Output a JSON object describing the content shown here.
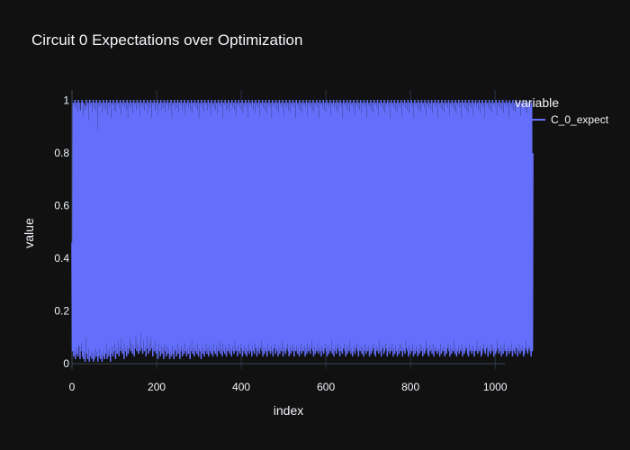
{
  "colors": {
    "background": "#111111",
    "grid": "#283442",
    "zeroline": "#3c4a5a",
    "text": "#f2f5fa",
    "series": "#636efa"
  },
  "chart_data": {
    "type": "line",
    "title": "Circuit 0 Expectations over Optimization",
    "xlabel": "index",
    "ylabel": "value",
    "xlim": [
      0,
      1023
    ],
    "ylim": [
      -0.02,
      1.04
    ],
    "x_ticks": [
      0,
      200,
      400,
      600,
      800,
      1000
    ],
    "y_ticks": [
      0,
      0.2,
      0.4,
      0.6,
      0.8,
      1
    ],
    "x_tick_labels": [
      "0",
      "200",
      "400",
      "600",
      "800",
      "1000"
    ],
    "y_tick_labels": [
      "0",
      "0.2",
      "0.4",
      "0.6",
      "0.8",
      "1"
    ],
    "grid": true,
    "legend": {
      "title": "variable",
      "position": "top-right",
      "entries": [
        "C_0_expect"
      ]
    },
    "series": [
      {
        "name": "C_0_expect",
        "x_start": 0,
        "x_step": 1,
        "values": [
          0.46,
          0.05,
          0.21,
          0.99,
          0.03,
          0.98,
          0.05,
          1.0,
          0.02,
          0.97,
          0.06,
          0.99,
          0.04,
          0.95,
          0.03,
          1.0,
          0.07,
          0.99,
          0.88,
          0.02,
          0.96,
          0.05,
          0.99,
          0.08,
          1.0,
          0.03,
          0.94,
          0.02,
          0.99,
          0.05,
          0.96,
          0.01,
          0.98,
          0.1,
          1.0,
          0.04,
          0.97,
          0.02,
          0.99,
          0.06,
          0.92,
          0.01,
          1.0,
          0.03,
          0.98,
          0.05,
          0.99,
          0.02,
          0.95,
          0.04,
          1.0,
          0.01,
          0.97,
          0.02,
          0.99,
          0.06,
          0.96,
          0.03,
          1.0,
          0.05,
          0.88,
          0.01,
          0.99,
          0.03,
          0.97,
          0.06,
          1.0,
          0.02,
          0.98,
          0.04,
          0.99,
          0.01,
          0.95,
          0.05,
          1.0,
          0.03,
          0.97,
          0.02,
          0.99,
          0.04,
          0.96,
          0.08,
          1.0,
          0.02,
          0.94,
          0.05,
          0.99,
          0.03,
          0.97,
          0.06,
          1.0,
          0.01,
          0.93,
          0.04,
          0.99,
          0.07,
          0.98,
          0.03,
          1.0,
          0.05,
          0.96,
          0.08,
          0.99,
          0.02,
          0.95,
          0.06,
          1.0,
          0.04,
          0.98,
          0.09,
          0.99,
          0.03,
          0.97,
          0.07,
          1.0,
          0.05,
          0.94,
          0.1,
          0.99,
          0.04,
          0.98,
          0.06,
          1.0,
          0.02,
          0.97,
          0.08,
          0.99,
          0.05,
          0.96,
          0.03,
          1.0,
          0.07,
          0.93,
          0.04,
          0.99,
          0.06,
          0.98,
          0.1,
          1.0,
          0.05,
          0.97,
          0.08,
          0.99,
          0.04,
          0.95,
          0.07,
          1.0,
          0.03,
          0.98,
          0.06,
          0.99,
          0.11,
          0.96,
          0.05,
          1.0,
          0.08,
          0.97,
          0.04,
          0.99,
          0.07,
          0.94,
          0.05,
          1.0,
          0.12,
          0.98,
          0.06,
          0.99,
          0.04,
          0.97,
          0.09,
          1.0,
          0.05,
          0.96,
          0.07,
          0.99,
          0.03,
          0.98,
          0.11,
          1.0,
          0.06,
          0.95,
          0.04,
          0.99,
          0.08,
          0.97,
          0.05,
          1.0,
          0.1,
          0.93,
          0.06,
          0.99,
          0.03,
          0.98,
          0.07,
          1.0,
          0.05,
          0.96,
          0.09,
          0.99,
          0.04,
          0.97,
          0.06,
          1.0,
          0.02,
          0.94,
          0.08,
          0.99,
          0.05,
          0.98,
          0.03,
          1.0,
          0.07,
          0.96,
          0.04,
          0.99,
          0.06,
          0.97,
          0.02,
          1.0,
          0.08,
          0.95,
          0.05,
          0.99,
          0.03,
          0.98,
          0.07,
          1.0,
          0.04,
          0.96,
          0.06,
          0.99,
          0.02,
          0.97,
          0.05,
          1.0,
          0.03,
          0.93,
          0.07,
          0.99,
          0.04,
          0.98,
          0.02,
          1.0,
          0.06,
          0.96,
          0.05,
          0.99,
          0.03,
          0.97,
          0.08,
          1.0,
          0.04,
          0.95,
          0.06,
          0.99,
          0.02,
          0.98,
          0.05,
          1.0,
          0.07,
          0.96,
          0.03,
          0.99,
          0.06,
          0.97,
          0.04,
          1.0,
          0.08,
          0.94,
          0.05,
          0.99,
          0.03,
          0.98,
          0.06,
          1.0,
          0.04,
          0.97,
          0.07,
          0.99,
          0.02,
          0.96,
          0.05,
          1.0,
          0.09,
          0.95,
          0.04,
          0.99,
          0.06,
          0.98,
          0.03,
          1.0,
          0.07,
          0.97,
          0.05,
          0.99,
          0.04,
          0.96,
          0.08,
          1.0,
          0.03,
          0.93,
          0.06,
          0.99,
          0.05,
          0.98,
          0.02,
          1.0,
          0.07,
          0.97,
          0.04,
          0.99,
          0.06,
          0.95,
          0.03,
          1.0,
          0.05,
          0.98,
          0.08,
          0.99,
          0.04,
          0.96,
          0.06,
          1.0,
          0.03,
          0.97,
          0.07,
          0.99,
          0.05,
          0.94,
          0.04,
          1.0,
          0.06,
          0.98,
          0.03,
          0.99,
          0.08,
          0.97,
          0.05,
          1.0,
          0.04,
          0.96,
          0.07,
          0.99,
          0.03,
          0.95,
          0.06,
          1.0,
          0.05,
          0.98,
          0.09,
          0.99,
          0.04,
          0.97,
          0.06,
          1.0,
          0.03,
          0.93,
          0.08,
          0.99,
          0.05,
          0.98,
          0.04,
          1.0,
          0.07,
          0.96,
          0.03,
          0.99,
          0.06,
          0.97,
          0.05,
          1.0,
          0.08,
          0.95,
          0.04,
          0.99,
          0.06,
          0.98,
          0.03,
          1.0,
          0.07,
          0.97,
          0.05,
          0.99,
          0.04,
          0.96,
          0.09,
          1.0,
          0.05,
          0.94,
          0.06,
          0.99,
          0.03,
          0.98,
          0.07,
          1.0,
          0.05,
          0.97,
          0.04,
          0.99,
          0.08,
          0.96,
          0.06,
          1.0,
          0.03,
          0.95,
          0.05,
          0.99,
          0.07,
          0.98,
          0.04,
          1.0,
          0.06,
          0.97,
          0.03,
          0.99,
          0.05,
          0.93,
          0.08,
          1.0,
          0.04,
          0.98,
          0.06,
          0.99,
          0.05,
          0.97,
          0.03,
          1.0,
          0.07,
          0.96,
          0.05,
          0.99,
          0.04,
          0.95,
          0.08,
          1.0,
          0.06,
          0.98,
          0.03,
          0.99,
          0.05,
          0.97,
          0.07,
          1.0,
          0.04,
          0.94,
          0.06,
          0.99,
          0.09,
          0.98,
          0.05,
          1.0,
          0.03,
          0.97,
          0.07,
          0.99,
          0.04,
          0.96,
          0.06,
          1.0,
          0.05,
          0.95,
          0.03,
          0.99,
          0.08,
          0.98,
          0.05,
          1.0,
          0.06,
          0.97,
          0.04,
          0.99,
          0.07,
          0.93,
          0.05,
          1.0,
          0.03,
          0.98,
          0.06,
          0.99,
          0.08,
          0.97,
          0.04,
          1.0,
          0.06,
          0.96,
          0.05,
          0.99,
          0.03,
          0.95,
          0.07,
          1.0,
          0.04,
          0.98,
          0.06,
          0.99,
          0.05,
          0.97,
          0.09,
          1.0,
          0.03,
          0.94,
          0.07,
          0.99,
          0.05,
          0.98,
          0.04,
          1.0,
          0.06,
          0.97,
          0.08,
          0.99,
          0.05,
          0.96,
          0.03,
          1.0,
          0.07,
          0.95,
          0.04,
          0.99,
          0.06,
          0.98,
          0.05,
          1.0,
          0.08,
          0.97,
          0.03,
          0.99,
          0.06,
          0.93,
          0.05,
          1.0,
          0.07,
          0.98,
          0.04,
          0.99,
          0.06,
          0.97,
          0.03,
          1.0,
          0.05,
          0.96,
          0.08,
          0.99,
          0.04,
          0.95,
          0.06,
          1.0,
          0.05,
          0.98,
          0.07,
          0.99,
          0.03,
          0.97,
          0.06,
          1.0,
          0.04,
          0.94,
          0.08,
          0.99,
          0.05,
          0.98,
          0.07,
          1.0,
          0.04,
          0.97,
          0.06,
          0.99,
          0.09,
          0.96,
          0.05,
          1.0,
          0.03,
          0.95,
          0.07,
          0.99,
          0.04,
          0.98,
          0.06,
          1.0,
          0.05,
          0.97,
          0.08,
          0.99,
          0.04,
          0.93,
          0.06,
          1.0,
          0.05,
          0.98,
          0.03,
          0.99,
          0.07,
          0.97,
          0.05,
          1.0,
          0.04,
          0.96,
          0.06,
          0.99,
          0.08,
          0.95,
          0.05,
          1.0,
          0.03,
          0.98,
          0.07,
          0.99,
          0.04,
          0.97,
          0.06,
          1.0,
          0.05,
          0.94,
          0.09,
          0.99,
          0.04,
          0.98,
          0.06,
          1.0,
          0.03,
          0.97,
          0.05,
          0.99,
          0.07,
          0.96,
          0.04,
          1.0,
          0.06,
          0.95,
          0.08,
          0.99,
          0.05,
          0.98,
          0.03,
          1.0,
          0.07,
          0.97,
          0.05,
          0.99,
          0.04,
          0.93,
          0.06,
          1.0,
          0.08,
          0.98,
          0.05,
          0.99,
          0.03,
          0.97,
          0.07,
          1.0,
          0.04,
          0.96,
          0.06,
          0.99,
          0.05,
          0.95,
          0.09,
          1.0,
          0.04,
          0.98,
          0.06,
          0.99,
          0.03,
          0.97,
          0.05,
          1.0,
          0.07,
          0.94,
          0.04,
          0.99,
          0.06,
          0.98,
          0.08,
          1.0,
          0.05,
          0.97,
          0.03,
          0.99,
          0.06,
          0.96,
          0.05,
          1.0,
          0.07,
          0.95,
          0.04,
          0.99,
          0.06,
          0.98,
          0.03,
          1.0,
          0.05,
          0.97,
          0.08,
          0.99,
          0.04,
          0.93,
          0.06,
          1.0,
          0.05,
          0.98,
          0.07,
          0.99,
          0.03,
          0.97,
          0.06,
          1.0,
          0.04,
          0.96,
          0.05,
          0.99,
          0.08,
          0.95,
          0.06,
          1.0,
          0.04,
          0.98,
          0.03,
          0.99,
          0.07,
          0.97,
          0.05,
          1.0,
          0.06,
          0.94,
          0.04,
          0.99,
          0.09,
          0.98,
          0.05,
          1.0,
          0.03,
          0.97,
          0.06,
          0.99,
          0.07,
          0.96,
          0.04,
          1.0,
          0.05,
          0.95,
          0.08,
          0.99,
          0.06,
          0.98,
          0.03,
          1.0,
          0.05,
          0.97,
          0.07,
          0.99,
          0.04,
          0.93,
          0.06,
          1.0,
          0.05,
          0.98,
          0.08,
          0.99,
          0.03,
          0.97,
          0.06,
          1.0,
          0.04,
          0.96,
          0.07,
          0.99,
          0.05,
          0.95,
          0.03,
          1.0,
          0.06,
          0.98,
          0.04,
          0.99,
          0.08,
          0.97,
          0.05,
          1.0,
          0.07,
          0.94,
          0.03,
          0.99,
          0.06,
          0.98,
          0.05,
          1.0,
          0.04,
          0.97,
          0.09,
          0.99,
          0.06,
          0.96,
          0.05,
          1.0,
          0.03,
          0.95,
          0.07,
          0.99,
          0.04,
          0.98,
          0.06,
          1.0,
          0.05,
          0.97,
          0.08,
          0.99,
          0.03,
          0.93,
          0.06,
          1.0,
          0.04,
          0.98,
          0.07,
          0.99,
          0.05,
          0.97,
          0.03,
          1.0,
          0.06,
          0.96,
          0.04,
          0.99,
          0.08,
          0.95,
          0.05,
          1.0,
          0.07,
          0.98,
          0.03,
          0.99,
          0.06,
          0.97,
          0.04,
          1.0,
          0.05,
          0.94,
          0.09,
          0.99,
          0.06,
          0.98,
          0.04,
          1.0,
          0.03,
          0.97,
          0.07,
          0.99,
          0.05,
          0.96,
          0.06,
          1.0,
          0.04,
          0.95,
          0.08,
          0.99,
          0.03,
          0.98,
          0.06,
          1.0,
          0.05,
          0.97,
          0.07,
          0.99,
          0.04,
          0.93,
          0.05,
          1.0,
          0.06,
          0.98,
          0.03,
          0.99,
          0.08,
          0.97,
          0.04,
          1.0,
          0.06,
          0.96,
          0.05,
          0.99,
          0.07,
          0.95,
          0.03,
          1.0,
          0.05,
          0.98,
          0.04,
          0.99,
          0.06,
          0.97,
          0.08,
          1.0,
          0.05,
          0.94,
          0.03,
          0.99,
          0.07,
          0.98,
          0.04,
          1.0,
          0.06,
          0.97,
          0.05,
          0.99,
          0.09,
          0.96,
          0.04,
          1.0,
          0.06,
          0.95,
          0.03,
          0.99,
          0.05,
          0.98,
          0.07,
          1.0,
          0.04,
          0.97,
          0.06,
          0.99,
          0.05,
          0.93,
          0.08,
          1.0,
          0.03,
          0.98,
          0.06,
          0.99,
          0.04,
          0.97,
          0.05,
          1.0,
          0.07,
          0.96,
          0.06,
          0.99,
          0.04,
          0.95,
          0.03,
          1.0,
          0.08,
          0.98,
          0.05,
          0.99,
          0.06,
          0.97,
          0.04,
          1.0,
          0.07,
          0.94,
          0.05,
          0.99,
          0.03,
          0.98,
          0.06,
          1.0,
          0.05,
          0.97,
          0.09,
          0.99,
          0.04,
          0.96,
          0.06,
          1.0,
          0.05,
          0.95,
          0.07,
          0.99,
          0.03,
          0.98,
          0.04,
          1.0,
          0.06,
          0.97,
          0.08,
          0.99,
          0.05,
          0.93,
          0.04,
          1.0,
          0.06,
          0.98,
          0.07,
          0.99,
          0.03,
          0.97,
          0.05,
          1.0,
          0.06,
          0.96,
          0.04,
          0.99,
          0.08,
          0.95,
          0.05,
          1.0,
          0.07,
          0.98,
          0.03,
          0.99,
          0.06,
          0.97,
          0.04,
          1.0,
          0.05,
          0.94,
          0.09,
          0.99,
          0.06,
          0.98,
          0.04,
          1.0,
          0.05,
          0.97,
          0.07,
          0.99,
          0.03,
          0.96,
          0.06,
          1.0,
          0.04,
          0.95,
          0.08,
          0.99,
          0.05,
          0.98,
          0.06,
          1.0,
          0.03,
          0.97,
          0.05,
          0.99,
          0.07,
          0.93,
          0.04,
          1.0,
          0.06,
          0.98,
          0.05,
          0.99,
          0.08,
          0.97,
          0.03,
          1.0,
          0.06,
          0.96,
          0.05,
          0.99,
          0.04,
          0.95,
          0.07,
          1.0,
          0.06,
          0.98,
          0.03,
          0.99,
          0.05,
          0.97,
          0.08,
          1.0,
          0.04,
          0.94,
          0.06,
          0.99,
          0.05,
          0.98,
          0.07,
          1.0,
          0.03,
          0.97,
          0.04,
          0.99,
          0.06,
          0.96,
          0.09,
          1.0,
          0.05,
          0.95,
          0.04,
          0.99,
          0.06,
          0.98,
          0.07,
          1.0,
          0.05,
          0.97,
          0.03,
          0.99,
          0.06,
          0.05,
          0.8
        ]
      }
    ]
  }
}
